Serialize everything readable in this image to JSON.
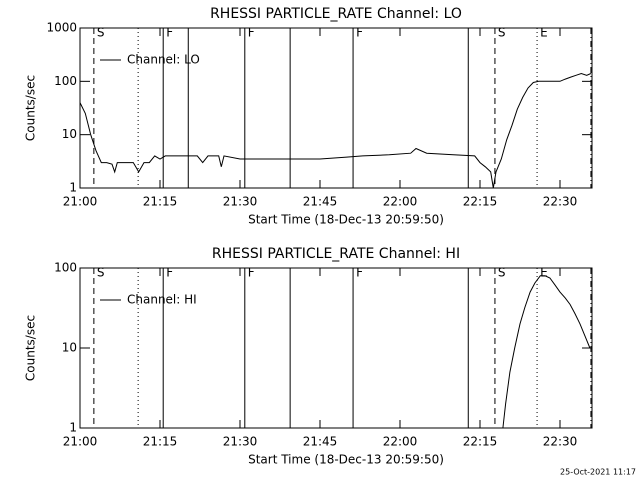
{
  "chart_data": [
    {
      "type": "line",
      "title": "RHESSI PARTICLE_RATE Channel: LO",
      "ylabel": "Counts/sec",
      "xlabel": "Start Time (18-Dec-13 20:59:50)",
      "log_y": true,
      "legend": "top-left",
      "color": "#000000",
      "xlim": [
        0,
        96
      ],
      "xticks": [
        {
          "value": 0,
          "label": "21:00"
        },
        {
          "value": 15,
          "label": "21:15"
        },
        {
          "value": 30,
          "label": "21:30"
        },
        {
          "value": 45,
          "label": "21:45"
        },
        {
          "value": 60,
          "label": "22:00"
        },
        {
          "value": 75,
          "label": "22:15"
        },
        {
          "value": 90,
          "label": "22:30"
        }
      ],
      "ylim": [
        1,
        1000
      ],
      "yticks": [
        1,
        10,
        100,
        1000
      ],
      "markers": [
        {
          "x": 2.6,
          "style": "dashed",
          "label": "S"
        },
        {
          "x": 10.9,
          "style": "dotted"
        },
        {
          "x": 15.6,
          "style": "solid",
          "label": "F"
        },
        {
          "x": 20.3,
          "style": "solid"
        },
        {
          "x": 30.9,
          "style": "solid",
          "label": "F"
        },
        {
          "x": 39.4,
          "style": "solid"
        },
        {
          "x": 51.2,
          "style": "solid",
          "label": "F"
        },
        {
          "x": 72.8,
          "style": "solid"
        },
        {
          "x": 77.8,
          "style": "dashed",
          "label": "S"
        },
        {
          "x": 85.7,
          "style": "dotted",
          "label": "E"
        },
        {
          "x": 95.8,
          "style": "dash-dot"
        }
      ],
      "series": [
        {
          "name": "Channel: LO",
          "color": "#000000",
          "x": [
            0,
            1,
            2,
            3,
            4,
            5,
            6,
            6.5,
            7,
            8,
            9,
            10,
            11,
            12,
            13,
            14,
            15,
            16,
            18,
            20,
            22,
            23,
            24,
            26,
            26.5,
            27,
            30,
            35,
            40,
            45,
            50,
            53,
            58,
            62,
            63,
            65,
            70,
            74,
            75,
            76,
            77,
            77.5,
            78,
            79,
            80,
            81,
            82,
            83,
            84,
            85,
            86,
            88,
            90,
            91,
            92,
            93,
            94,
            95,
            95.8
          ],
          "values": [
            40,
            25,
            10,
            5,
            3,
            3,
            2.8,
            2,
            3,
            3,
            3,
            3,
            2,
            3,
            3,
            4,
            3.5,
            4,
            4,
            4,
            4,
            3,
            4,
            4,
            2.5,
            4,
            3.5,
            3.5,
            3.5,
            3.5,
            3.8,
            4,
            4.2,
            4.5,
            5.5,
            4.5,
            4.2,
            4,
            3,
            2.5,
            2,
            1,
            2,
            3.5,
            8,
            15,
            30,
            50,
            75,
            95,
            100,
            100,
            100,
            110,
            120,
            130,
            140,
            130,
            140
          ]
        }
      ]
    },
    {
      "type": "line",
      "title": "RHESSI PARTICLE_RATE Channel: HI",
      "ylabel": "Counts/sec",
      "xlabel": "Start Time (18-Dec-13 20:59:50)",
      "log_y": true,
      "legend": "top-left",
      "color": "#000000",
      "xlim": [
        0,
        96
      ],
      "xticks": [
        {
          "value": 0,
          "label": "21:00"
        },
        {
          "value": 15,
          "label": "21:15"
        },
        {
          "value": 30,
          "label": "21:30"
        },
        {
          "value": 45,
          "label": "21:45"
        },
        {
          "value": 60,
          "label": "22:00"
        },
        {
          "value": 75,
          "label": "22:15"
        },
        {
          "value": 90,
          "label": "22:30"
        }
      ],
      "ylim": [
        1,
        100
      ],
      "yticks": [
        1,
        10,
        100
      ],
      "markers": [
        {
          "x": 2.6,
          "style": "dashed",
          "label": "S"
        },
        {
          "x": 10.9,
          "style": "dotted"
        },
        {
          "x": 15.6,
          "style": "solid",
          "label": "F"
        },
        {
          "x": 30.9,
          "style": "solid",
          "label": "F"
        },
        {
          "x": 39.4,
          "style": "solid"
        },
        {
          "x": 51.2,
          "style": "solid",
          "label": "F"
        },
        {
          "x": 72.8,
          "style": "solid"
        },
        {
          "x": 77.8,
          "style": "dashed",
          "label": "S"
        },
        {
          "x": 85.7,
          "style": "dotted",
          "label": "E"
        },
        {
          "x": 95.8,
          "style": "dash-dot"
        }
      ],
      "series": [
        {
          "name": "Channel: HI",
          "color": "#000000",
          "x": [
            79.3,
            79.8,
            80.6,
            81.5,
            82.5,
            83.4,
            84.4,
            85.3,
            86.3,
            87.2,
            88.1,
            89,
            90,
            91,
            91.9,
            92.8,
            93.75,
            94.7,
            95.6
          ],
          "values": [
            1,
            2,
            5,
            10,
            20,
            32,
            50,
            65,
            80,
            80,
            75,
            62,
            50,
            42,
            35,
            27,
            20,
            14,
            10
          ]
        }
      ]
    }
  ],
  "footer": "25-Oct-2021 11:17"
}
